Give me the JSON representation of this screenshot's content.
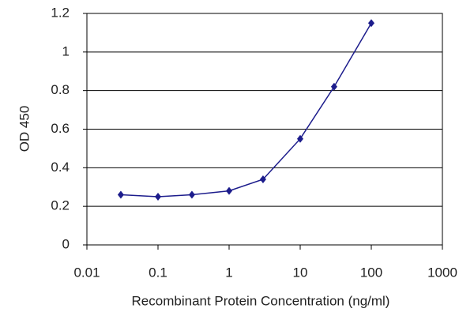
{
  "chart_data": {
    "type": "line",
    "x_label": "Recombinant Protein Concentration (ng/ml)",
    "y_label": "OD 450",
    "x": [
      0.03,
      0.1,
      0.3,
      1,
      3,
      10,
      30,
      100
    ],
    "series": [
      {
        "color": "#1c1c8c",
        "values": [
          0.26,
          0.25,
          0.26,
          0.28,
          0.34,
          0.55,
          0.82,
          1.15
        ]
      }
    ],
    "xscale": "log",
    "xlim": [
      0.01,
      1000
    ],
    "xticks": [
      0.01,
      0.1,
      1,
      10,
      100,
      1000
    ],
    "ylim": [
      0,
      1.2
    ],
    "yticks": [
      0,
      0.2,
      0.4,
      0.6,
      0.8,
      1,
      1.2
    ],
    "grid": true
  }
}
